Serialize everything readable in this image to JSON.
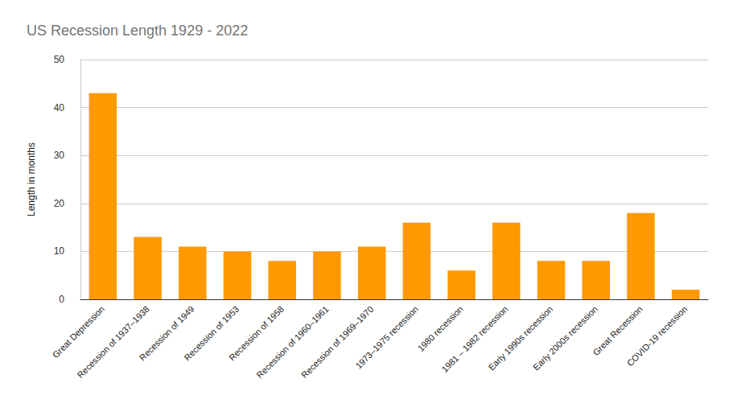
{
  "chart_data": {
    "type": "bar",
    "title": "US Recession Length 1929 - 2022",
    "y_label": "Length in months",
    "categories": [
      "Great Depression",
      "Recession of 1937–1938",
      "Recession of 1949",
      "Recession of 1953",
      "Recession of 1958",
      "Recession of 1960–1961",
      "Recession of 1969–1970",
      "1973–1975 recession",
      "1980 recession",
      "1981 – 1982 recession",
      "Early 1990s recession",
      "Early 2000s recession",
      "Great Recession",
      "COVID-19 recession"
    ],
    "values": [
      43,
      13,
      11,
      10,
      8,
      10,
      11,
      16,
      6,
      16,
      8,
      8,
      18,
      2
    ],
    "color": "#ff9900",
    "ylim": [
      0,
      50
    ],
    "yticks": [
      0,
      10,
      20,
      30,
      40,
      50
    ],
    "grid": true
  }
}
